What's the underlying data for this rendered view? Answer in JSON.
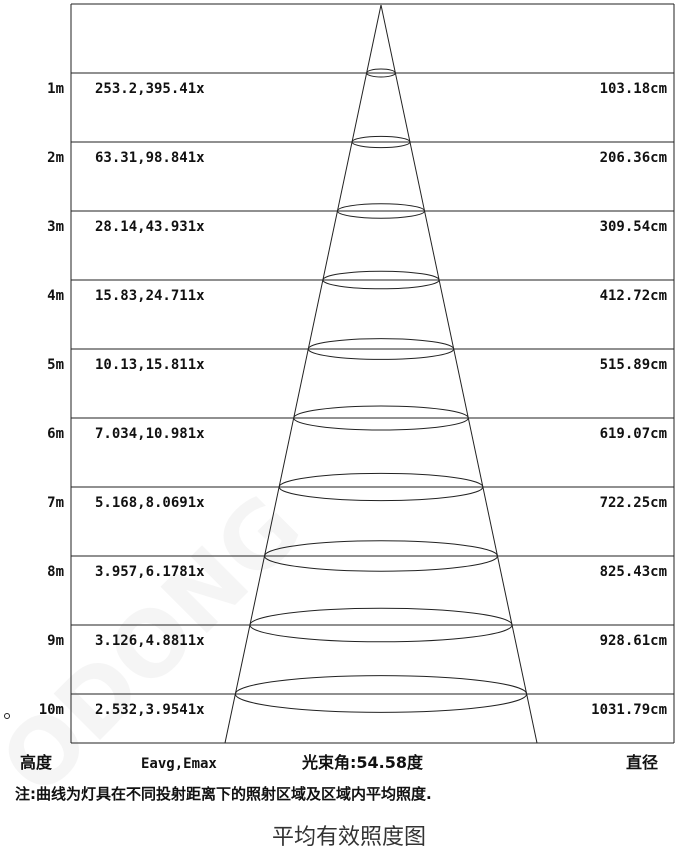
{
  "beam_angle_deg": 54.58,
  "rows": [
    {
      "height": "1m",
      "lux": "253.2,395.41x",
      "diameter": "103.18cm"
    },
    {
      "height": "2m",
      "lux": "63.31,98.841x",
      "diameter": "206.36cm"
    },
    {
      "height": "3m",
      "lux": "28.14,43.931x",
      "diameter": "309.54cm"
    },
    {
      "height": "4m",
      "lux": "15.83,24.711x",
      "diameter": "412.72cm"
    },
    {
      "height": "5m",
      "lux": "10.13,15.811x",
      "diameter": "515.89cm"
    },
    {
      "height": "6m",
      "lux": "7.034,10.981x",
      "diameter": "619.07cm"
    },
    {
      "height": "7m",
      "lux": "5.168,8.0691x",
      "diameter": "722.25cm"
    },
    {
      "height": "8m",
      "lux": "3.957,6.1781x",
      "diameter": "825.43cm"
    },
    {
      "height": "9m",
      "lux": "3.126,4.8811x",
      "diameter": "928.61cm"
    },
    {
      "height": "10m",
      "lux": "2.532,3.9541x",
      "diameter": "1031.79cm"
    }
  ],
  "footer": {
    "height_label": "高度",
    "illuminance_label": "Eavg,Emax",
    "beam_label": "光束角:54.58度",
    "diameter_label": "直径"
  },
  "note": "注:曲线为灯具在不同投射距离下的照射区域及区域内平均照度.",
  "caption": "平均有效照度图",
  "watermark": "ODONG"
}
